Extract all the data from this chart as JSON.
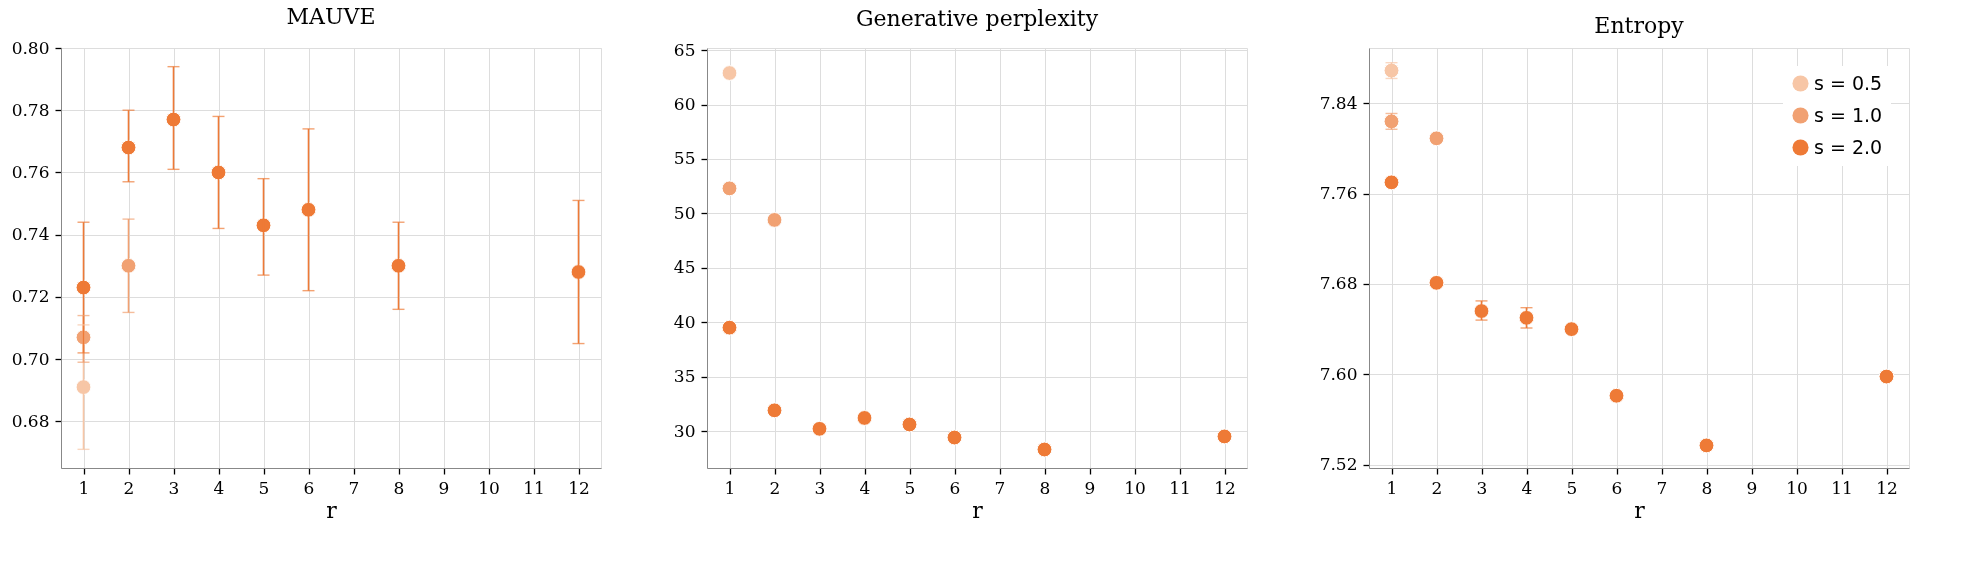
{
  "chart_data": [
    {
      "type": "scatter",
      "title": "MAUVE",
      "xlabel": "r",
      "xlim": [
        0.5,
        12.5
      ],
      "xticks": [
        1,
        2,
        3,
        4,
        5,
        6,
        7,
        8,
        9,
        10,
        11,
        12
      ],
      "ylim": [
        0.665,
        0.8
      ],
      "yticks": [
        0.68,
        {
          "value": 0.7,
          "label": "0.70"
        },
        0.72,
        0.74,
        0.76,
        0.78,
        {
          "value": 0.8,
          "label": "0.80"
        }
      ],
      "grid": true,
      "marker": "circle",
      "series": [
        {
          "color": "#f7c6a6",
          "x": [
            1
          ],
          "values": [
            0.691
          ],
          "errors": [
            [
              0.671,
              0.711
            ]
          ]
        },
        {
          "color": "#f1a172",
          "x": [
            1,
            2
          ],
          "values": [
            0.707,
            0.73
          ],
          "errors": [
            [
              0.699,
              0.714
            ],
            [
              0.715,
              0.745
            ]
          ]
        },
        {
          "color": "#ee7a36",
          "x": [
            1,
            2,
            3,
            4,
            5,
            6,
            8,
            12
          ],
          "values": [
            0.723,
            0.768,
            0.777,
            0.76,
            0.743,
            0.748,
            0.73,
            0.728
          ],
          "errors": [
            [
              0.702,
              0.744
            ],
            [
              0.757,
              0.78
            ],
            [
              0.761,
              0.794
            ],
            [
              0.742,
              0.778
            ],
            [
              0.727,
              0.758
            ],
            [
              0.722,
              0.774
            ],
            [
              0.716,
              0.744
            ],
            [
              0.705,
              0.751
            ]
          ]
        }
      ]
    },
    {
      "type": "scatter",
      "title": "Generative perplexity",
      "xlabel": "r",
      "xlim": [
        0.5,
        12.5
      ],
      "xticks": [
        1,
        2,
        3,
        4,
        5,
        6,
        7,
        8,
        9,
        10,
        11,
        12
      ],
      "ylim": [
        26.6,
        65.2
      ],
      "yticks": [
        30,
        35,
        40,
        45,
        50,
        55,
        60,
        65
      ],
      "grid": true,
      "marker": "circle",
      "series": [
        {
          "color": "#f7c6a6",
          "x": [
            1
          ],
          "values": [
            62.9
          ]
        },
        {
          "color": "#f1a172",
          "x": [
            1,
            2
          ],
          "values": [
            52.3,
            49.4
          ]
        },
        {
          "color": "#ee7a36",
          "x": [
            1,
            2,
            3,
            4,
            5,
            6,
            8,
            12
          ],
          "values": [
            39.5,
            31.9,
            30.2,
            31.2,
            30.6,
            29.4,
            28.3,
            29.5
          ]
        }
      ]
    },
    {
      "type": "scatter",
      "title": "Entropy",
      "xlabel": "r",
      "xlim": [
        0.5,
        12.5
      ],
      "xticks": [
        1,
        2,
        3,
        4,
        5,
        6,
        7,
        8,
        9,
        10,
        11,
        12
      ],
      "ylim": [
        7.517,
        7.889
      ],
      "yticks": [
        7.52,
        {
          "value": 7.6,
          "label": "7.60"
        },
        7.68,
        7.76,
        7.84
      ],
      "grid": true,
      "marker": "circle",
      "legend": "top right",
      "series": [
        {
          "name": "s = 0.5",
          "color": "#f7c6a6",
          "x": [
            1
          ],
          "values": [
            7.869
          ],
          "errors": [
            [
              7.862,
              7.876
            ]
          ]
        },
        {
          "name": "s = 1.0",
          "color": "#f1a172",
          "x": [
            1,
            2
          ],
          "values": [
            7.824,
            7.809
          ],
          "errors": [
            [
              7.817,
              7.831
            ],
            null
          ]
        },
        {
          "name": "s = 2.0",
          "color": "#ee7a36",
          "x": [
            1,
            2,
            3,
            4,
            5,
            6,
            8,
            12
          ],
          "values": [
            7.77,
            7.681,
            7.656,
            7.65,
            7.64,
            7.581,
            7.537,
            7.598
          ],
          "errors": [
            null,
            null,
            [
              7.648,
              7.665
            ],
            [
              7.641,
              7.659
            ],
            null,
            null,
            null,
            null
          ]
        }
      ]
    }
  ]
}
